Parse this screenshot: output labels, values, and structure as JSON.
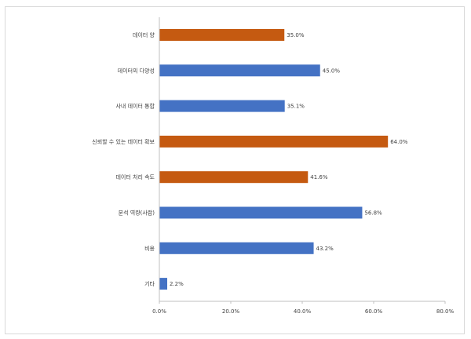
{
  "chart_data": {
    "type": "bar",
    "orientation": "horizontal",
    "categories": [
      "데이터 양",
      "데이터의 다양성",
      "사내 데이터 통합",
      "신뢰할 수 있는 데이터 확보",
      "데이터 처리 속도",
      "분석 역량(사람)",
      "비용",
      "기타"
    ],
    "values": [
      35.0,
      45.0,
      35.1,
      64.0,
      41.6,
      56.8,
      43.2,
      2.2
    ],
    "value_labels": [
      "35.0%",
      "45.0%",
      "35.1%",
      "64.0%",
      "41.6%",
      "56.8%",
      "43.2%",
      "2.2%"
    ],
    "bar_colors": [
      "#c55a11",
      "#4472c4",
      "#4472c4",
      "#c55a11",
      "#c55a11",
      "#4472c4",
      "#4472c4",
      "#4472c4"
    ],
    "xlim": [
      0,
      80
    ],
    "x_ticks": [
      "0.0%",
      "20.0%",
      "40.0%",
      "60.0%",
      "80.0%"
    ],
    "grid": false,
    "title": "",
    "xlabel": "",
    "ylabel": ""
  }
}
